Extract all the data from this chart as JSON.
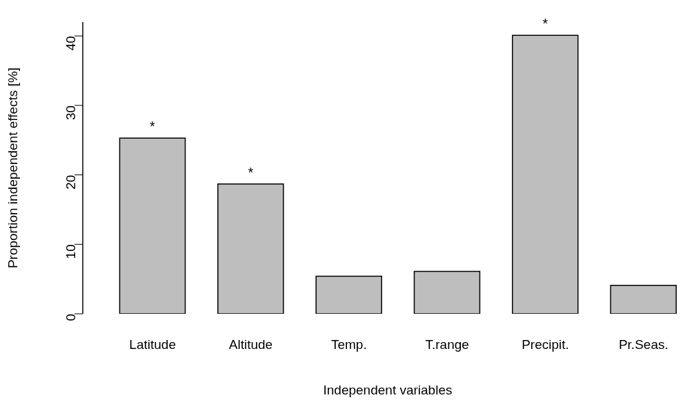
{
  "chart_data": {
    "type": "bar",
    "xlabel": "Independent variables",
    "ylabel": "Proportion independent effects [%]",
    "categories": [
      "Latitude",
      "Altitude",
      "Temp.",
      "T.range",
      "Precipit.",
      "Pr.Seas."
    ],
    "values": [
      25.3,
      18.7,
      5.4,
      6.1,
      40.1,
      4.1
    ],
    "value_labels": [
      "*",
      "*",
      null,
      null,
      "*",
      null
    ],
    "color": "#bebebe",
    "ylim": [
      0,
      42
    ],
    "yticks": [
      0,
      10,
      20,
      30,
      40
    ],
    "grid": false
  }
}
